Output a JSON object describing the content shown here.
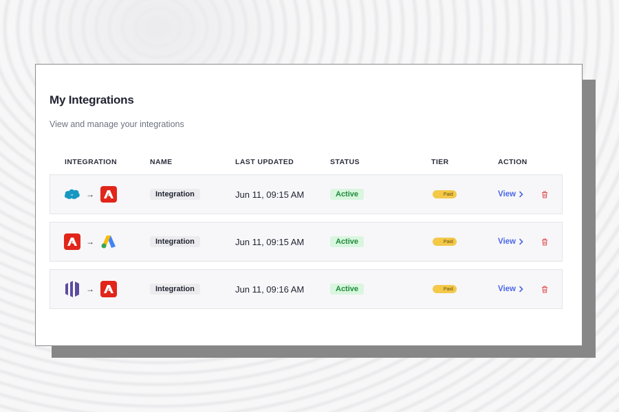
{
  "header": {
    "title": "My Integrations",
    "subtitle": "View and manage your integrations"
  },
  "table": {
    "columns": [
      "INTEGRATION",
      "NAME",
      "LAST UPDATED",
      "STATUS",
      "TIER",
      "ACTION"
    ],
    "rows": [
      {
        "source_icon": "salesforce-icon",
        "target_icon": "adobe-icon",
        "name": "Integration",
        "last_updated": "Jun 11, 09:15 AM",
        "status": "Active",
        "tier": "Paid",
        "action": "View"
      },
      {
        "source_icon": "adobe-icon",
        "target_icon": "google-ads-icon",
        "name": "Integration",
        "last_updated": "Jun 11, 09:15 AM",
        "status": "Active",
        "tier": "Paid",
        "action": "View"
      },
      {
        "source_icon": "marketo-icon",
        "target_icon": "adobe-icon",
        "name": "Integration",
        "last_updated": "Jun 11, 09:16 AM",
        "status": "Active",
        "tier": "Paid",
        "action": "View"
      }
    ]
  },
  "colors": {
    "accent": "#4b67e6",
    "status_green": "#1e8a3a",
    "tier_gold": "#f2c94c",
    "delete_red": "#e05252",
    "adobe_red": "#e1251b",
    "marketo_purple": "#5c4c9f",
    "salesforce_blue": "#1798c1"
  }
}
